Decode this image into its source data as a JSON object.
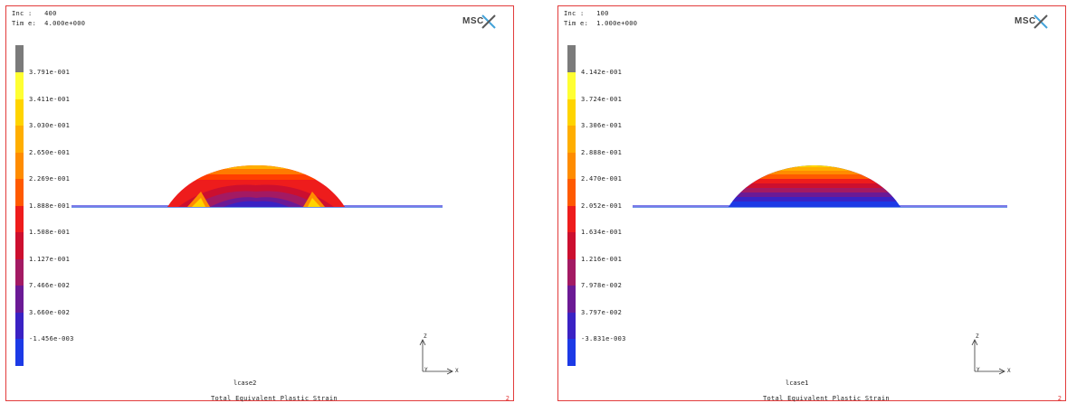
{
  "panels": [
    {
      "inc_label": "Inc :   400",
      "time_label": "Tim e:  4.000e+000",
      "logo_text": "MSC",
      "legend_ticks": [
        "3.791e-001",
        "3.411e-001",
        "3.030e-001",
        "2.650e-001",
        "2.269e-001",
        "1.888e-001",
        "1.508e-001",
        "1.127e-001",
        "7.466e-002",
        "3.660e-002",
        "-1.456e-003"
      ],
      "case": "lcase2",
      "variable": "Total Equivalent Plastic Strain",
      "page_number": "2",
      "axis": {
        "z": "Z",
        "y": "Y",
        "x": "X"
      }
    },
    {
      "inc_label": "Inc :   100",
      "time_label": "Tim e:  1.000e+000",
      "logo_text": "MSC",
      "legend_ticks": [
        "4.142e-001",
        "3.724e-001",
        "3.306e-001",
        "2.888e-001",
        "2.470e-001",
        "2.052e-001",
        "1.634e-001",
        "1.216e-001",
        "7.978e-002",
        "3.797e-002",
        "-3.831e-003"
      ],
      "case": "lcase1",
      "variable": "Total Equivalent Plastic Strain",
      "page_number": "2",
      "axis": {
        "z": "Z",
        "y": "Y",
        "x": "X"
      }
    }
  ],
  "colors": {
    "frame_border": "#e23b3b",
    "legend_scale": [
      "#7b7b7b",
      "#ffff33",
      "#ffd400",
      "#ffae00",
      "#ff8c00",
      "#ff5a00",
      "#ee1c1c",
      "#cc0f2f",
      "#a31a63",
      "#6b1a95",
      "#3a22c4",
      "#1c3ae6",
      "#646464"
    ]
  }
}
